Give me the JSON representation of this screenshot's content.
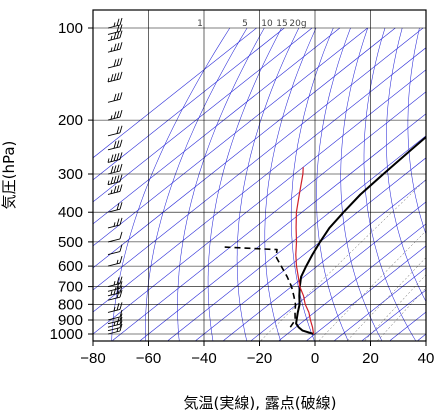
{
  "chart_data": {
    "type": "line",
    "title": "",
    "xlabel": "気温(実線), 露点(破線)",
    "ylabel": "気圧(hPa)",
    "xlim": [
      -80,
      40
    ],
    "ylim": [
      1050,
      100
    ],
    "y_scale": "log",
    "x_ticks": [
      -80,
      -60,
      -40,
      -20,
      0,
      20,
      40
    ],
    "x_tick_labels": [
      "−80",
      "−60",
      "−40",
      "−20",
      "0",
      "20",
      "40"
    ],
    "y_ticks": [
      100,
      200,
      300,
      400,
      500,
      600,
      700,
      800,
      900,
      1000
    ],
    "y_tick_labels": [
      "100",
      "200",
      "300",
      "400",
      "500",
      "600",
      "700",
      "800",
      "900",
      "1000"
    ],
    "mixing_ratio_labels": [
      "1",
      "5",
      "10",
      "15",
      "20g"
    ],
    "mixing_ratio_values": [
      1,
      5,
      10,
      15,
      20
    ],
    "grid": true,
    "colors": {
      "temperature": "#000000",
      "dewpoint": "#000000",
      "parcel": "#d0202a",
      "isotherm_skew": "#2a2ad8",
      "grid": "#000000"
    },
    "series": [
      {
        "key": "temperature",
        "style": "solid",
        "points": [
          [
            1000,
            -0.5
          ],
          [
            975,
            -6
          ],
          [
            950,
            -9
          ],
          [
            925,
            -11.5
          ],
          [
            900,
            -13
          ],
          [
            850,
            -16
          ],
          [
            800,
            -19
          ],
          [
            750,
            -23
          ],
          [
            700,
            -27
          ],
          [
            650,
            -31
          ],
          [
            600,
            -34
          ],
          [
            550,
            -37
          ],
          [
            500,
            -40
          ],
          [
            450,
            -43
          ],
          [
            400,
            -45
          ],
          [
            350,
            -47
          ],
          [
            300,
            -48
          ],
          [
            250,
            -49
          ],
          [
            225,
            -49.5
          ],
          [
            200,
            -49
          ],
          [
            175,
            -49
          ],
          [
            150,
            -49
          ],
          [
            125,
            -50
          ],
          [
            110,
            -51
          ],
          [
            100,
            -52
          ]
        ]
      },
      {
        "key": "dewpoint",
        "style": "dashed",
        "points": [
          [
            950,
            -12
          ],
          [
            900,
            -13.5
          ],
          [
            850,
            -17
          ],
          [
            800,
            -20.5
          ],
          [
            750,
            -25
          ],
          [
            700,
            -30
          ],
          [
            650,
            -36
          ],
          [
            600,
            -43
          ],
          [
            560,
            -49
          ],
          [
            530,
            -52
          ],
          [
            520,
            -72
          ]
        ]
      },
      {
        "key": "parcel",
        "style": "solid",
        "points": [
          [
            1000,
            -0.5
          ],
          [
            950,
            -4
          ],
          [
            900,
            -8
          ],
          [
            850,
            -12
          ],
          [
            800,
            -17
          ],
          [
            750,
            -21.5
          ],
          [
            700,
            -27
          ],
          [
            650,
            -32
          ],
          [
            600,
            -37.5
          ],
          [
            550,
            -43
          ],
          [
            500,
            -48.5
          ],
          [
            450,
            -55
          ],
          [
            400,
            -62
          ],
          [
            350,
            -69
          ],
          [
            300,
            -77
          ],
          [
            285,
            -80
          ]
        ]
      }
    ],
    "wind_barbs": [
      {
        "p": 100,
        "spd": 15
      },
      {
        "p": 105,
        "spd": 20
      },
      {
        "p": 110,
        "spd": 25
      },
      {
        "p": 120,
        "spd": 25
      },
      {
        "p": 135,
        "spd": 30
      },
      {
        "p": 150,
        "spd": 35
      },
      {
        "p": 175,
        "spd": 30
      },
      {
        "p": 200,
        "spd": 25
      },
      {
        "p": 225,
        "spd": 20
      },
      {
        "p": 250,
        "spd": 30
      },
      {
        "p": 275,
        "spd": 35
      },
      {
        "p": 300,
        "spd": 40
      },
      {
        "p": 325,
        "spd": 35
      },
      {
        "p": 350,
        "spd": 25
      },
      {
        "p": 400,
        "spd": 20
      },
      {
        "p": 450,
        "spd": 15
      },
      {
        "p": 500,
        "spd": 10
      },
      {
        "p": 550,
        "spd": 10
      },
      {
        "p": 600,
        "spd": 5
      },
      {
        "p": 700,
        "spd": 15
      },
      {
        "p": 725,
        "spd": 20
      },
      {
        "p": 750,
        "spd": 25
      },
      {
        "p": 775,
        "spd": 20
      },
      {
        "p": 850,
        "spd": 15
      },
      {
        "p": 900,
        "spd": 10
      },
      {
        "p": 925,
        "spd": 10
      },
      {
        "p": 950,
        "spd": 15
      },
      {
        "p": 975,
        "spd": 10
      },
      {
        "p": 1000,
        "spd": 5
      }
    ]
  }
}
